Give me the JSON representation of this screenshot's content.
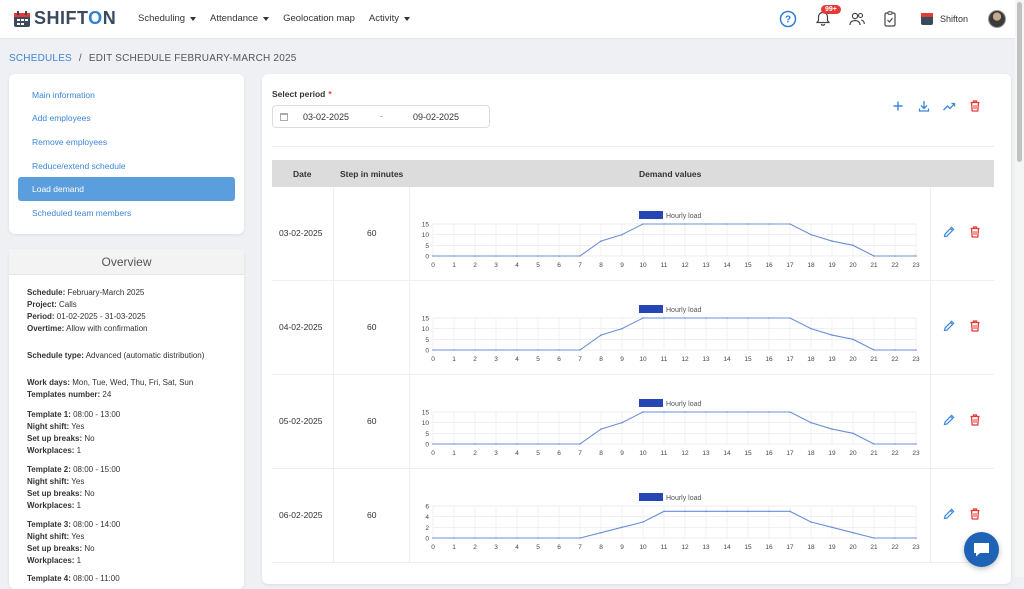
{
  "brand": {
    "logo_text_a": "SHIFT",
    "logo_text_o": "O",
    "logo_text_b": "N"
  },
  "nav": [
    {
      "label": "Scheduling",
      "dropdown": true
    },
    {
      "label": "Attendance",
      "dropdown": true
    },
    {
      "label": "Geolocation map",
      "dropdown": false
    },
    {
      "label": "Activity",
      "dropdown": true
    }
  ],
  "top_icons": [
    "help-icon",
    "bell-icon",
    "users-icon",
    "clipboard-icon"
  ],
  "notifications_badge": "99+",
  "user": {
    "name": "Shifton"
  },
  "breadcrumb": {
    "root": "SCHEDULES",
    "separator": "/",
    "current": "EDIT SCHEDULE FEBRUARY-MARCH 2025"
  },
  "menu": [
    {
      "label": "Main information",
      "active": false
    },
    {
      "label": "Add employees",
      "active": false
    },
    {
      "label": "Remove employees",
      "active": false
    },
    {
      "label": "Reduce/extend schedule",
      "active": false
    },
    {
      "label": "Load demand",
      "active": true
    },
    {
      "label": "Scheduled team members",
      "active": false
    }
  ],
  "overview": {
    "title": "Overview",
    "lines": [
      {
        "label": "Schedule:",
        "value": " February-March 2025"
      },
      {
        "label": "Project:",
        "value": " Calls"
      },
      {
        "label": "Period:",
        "value": " 01-02-2025 - 31-03-2025"
      },
      {
        "label": "Overtime:",
        "value": " Allow with confirmation"
      },
      {
        "label": "Schedule type:",
        "value": " Advanced (automatic distribution)"
      },
      {
        "label": "Work days:",
        "value": " Mon, Tue, Wed, Thu, Fri, Sat, Sun"
      },
      {
        "label": "Templates number:",
        "value": " 24"
      },
      {
        "label": "Template 1:",
        "value": " 08:00 - 13:00"
      },
      {
        "label": "Night shift:",
        "value": " Yes"
      },
      {
        "label": "Set up breaks:",
        "value": " No"
      },
      {
        "label": "Workplaces:",
        "value": " 1"
      },
      {
        "label": "Template 2:",
        "value": " 08:00 - 15:00"
      },
      {
        "label": "Night shift:",
        "value": " Yes"
      },
      {
        "label": "Set up breaks:",
        "value": " No"
      },
      {
        "label": "Workplaces:",
        "value": " 1"
      },
      {
        "label": "Template 3:",
        "value": " 08:00 - 14:00"
      },
      {
        "label": "Night shift:",
        "value": " Yes"
      },
      {
        "label": "Set up breaks:",
        "value": " No"
      },
      {
        "label": "Workplaces:",
        "value": " 1"
      },
      {
        "label": "Template 4:",
        "value": " 08:00 - 11:00"
      }
    ]
  },
  "period": {
    "label": "Select period",
    "required_mark": "*",
    "start": "03-02-2025",
    "separator": "-",
    "end": "09-02-2025"
  },
  "actions": [
    "plus-icon",
    "download-icon",
    "trend-icon",
    "trash-icon"
  ],
  "table": {
    "headers": {
      "date": "Date",
      "step": "Step in minutes",
      "demand": "Demand values"
    }
  },
  "legend_label": "Hourly load",
  "colors": {
    "accent": "#3b86d8",
    "series": "#2746b5",
    "line": "#6b8fd6",
    "danger": "#e53935"
  },
  "chart_data": [
    {
      "type": "line",
      "date": "03-02-2025",
      "step": "60",
      "series": [
        {
          "name": "Hourly load",
          "values": [
            0,
            0,
            0,
            0,
            0,
            0,
            0,
            0,
            7,
            10,
            15,
            15,
            15,
            15,
            15,
            15,
            15,
            15,
            10,
            7,
            5,
            0,
            0,
            0
          ]
        }
      ],
      "x": [
        0,
        1,
        2,
        3,
        4,
        5,
        6,
        7,
        8,
        9,
        10,
        11,
        12,
        13,
        14,
        15,
        16,
        17,
        18,
        19,
        20,
        21,
        22,
        23
      ],
      "ylim": [
        0,
        15
      ],
      "yticks": [
        0,
        5,
        10,
        15
      ],
      "grid": true,
      "legend": "top"
    },
    {
      "type": "line",
      "date": "04-02-2025",
      "step": "60",
      "series": [
        {
          "name": "Hourly load",
          "values": [
            0,
            0,
            0,
            0,
            0,
            0,
            0,
            0,
            7,
            10,
            15,
            15,
            15,
            15,
            15,
            15,
            15,
            15,
            10,
            7,
            5,
            0,
            0,
            0
          ]
        }
      ],
      "x": [
        0,
        1,
        2,
        3,
        4,
        5,
        6,
        7,
        8,
        9,
        10,
        11,
        12,
        13,
        14,
        15,
        16,
        17,
        18,
        19,
        20,
        21,
        22,
        23
      ],
      "ylim": [
        0,
        15
      ],
      "yticks": [
        0,
        5,
        10,
        15
      ],
      "grid": true,
      "legend": "top"
    },
    {
      "type": "line",
      "date": "05-02-2025",
      "step": "60",
      "series": [
        {
          "name": "Hourly load",
          "values": [
            0,
            0,
            0,
            0,
            0,
            0,
            0,
            0,
            7,
            10,
            15,
            15,
            15,
            15,
            15,
            15,
            15,
            15,
            10,
            7,
            5,
            0,
            0,
            0
          ]
        }
      ],
      "x": [
        0,
        1,
        2,
        3,
        4,
        5,
        6,
        7,
        8,
        9,
        10,
        11,
        12,
        13,
        14,
        15,
        16,
        17,
        18,
        19,
        20,
        21,
        22,
        23
      ],
      "ylim": [
        0,
        15
      ],
      "yticks": [
        0,
        5,
        10,
        15
      ],
      "grid": true,
      "legend": "top"
    },
    {
      "type": "line",
      "date": "06-02-2025",
      "step": "60",
      "series": [
        {
          "name": "Hourly load",
          "values": [
            0,
            0,
            0,
            0,
            0,
            0,
            0,
            0,
            1,
            2,
            3,
            5,
            5,
            5,
            5,
            5,
            5,
            5,
            3,
            2,
            1,
            0,
            0,
            0
          ]
        }
      ],
      "x": [
        0,
        1,
        2,
        3,
        4,
        5,
        6,
        7,
        8,
        9,
        10,
        11,
        12,
        13,
        14,
        15,
        16,
        17,
        18,
        19,
        20,
        21,
        22,
        23
      ],
      "ylim": [
        0,
        6
      ],
      "yticks": [
        0,
        2,
        4,
        6
      ],
      "grid": true,
      "legend": "top"
    }
  ]
}
